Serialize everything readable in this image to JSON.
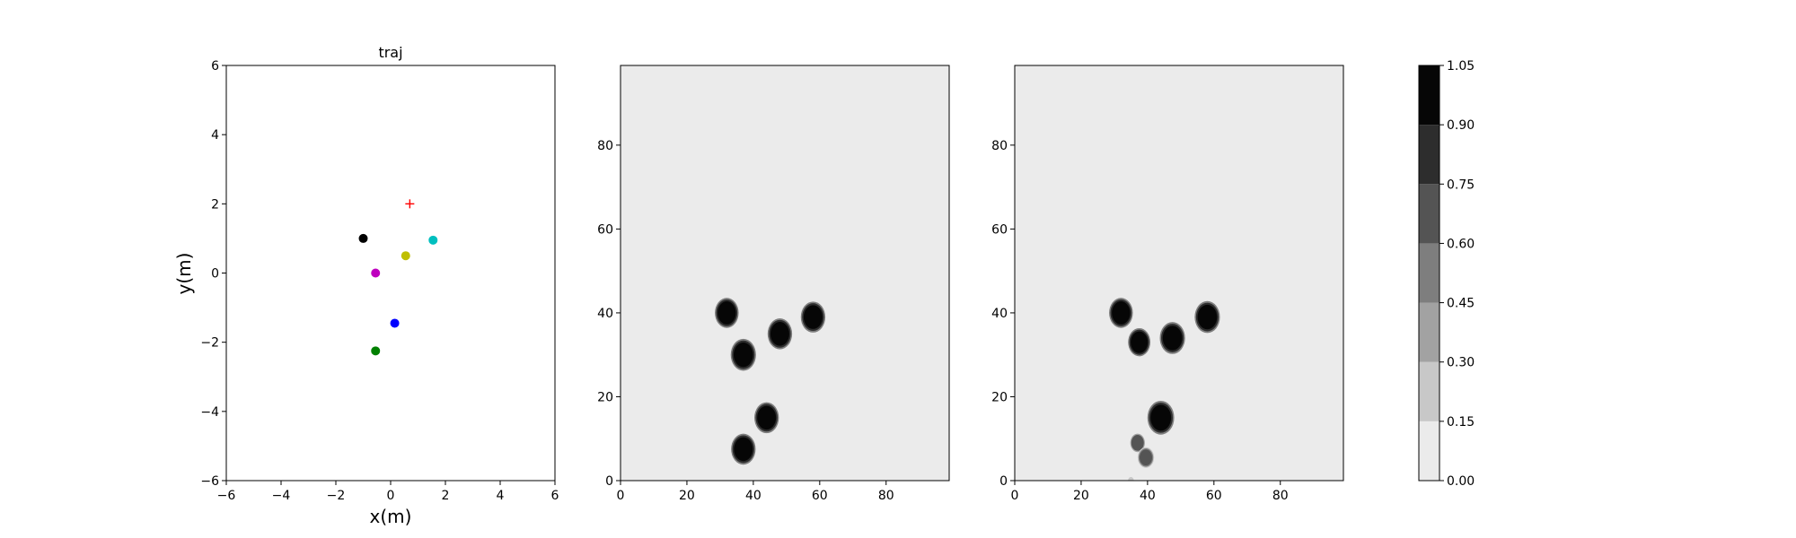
{
  "chart_data": [
    {
      "type": "scatter",
      "title": "traj",
      "xlabel": "x(m)",
      "ylabel": "y(m)",
      "xlim": [
        -6,
        6
      ],
      "ylim": [
        -6,
        6
      ],
      "xticks": [
        -6,
        -4,
        -2,
        0,
        2,
        4,
        6
      ],
      "yticks": [
        -6,
        -4,
        -2,
        0,
        2,
        4,
        6
      ],
      "grid": false,
      "points": [
        {
          "x": -1.0,
          "y": 1.0,
          "color": "#000000",
          "marker": "circle"
        },
        {
          "x": -0.55,
          "y": 0.0,
          "color": "#bf00bf",
          "marker": "circle"
        },
        {
          "x": 0.55,
          "y": 0.5,
          "color": "#bfbf00",
          "marker": "circle"
        },
        {
          "x": 1.55,
          "y": 0.95,
          "color": "#00bfbf",
          "marker": "circle"
        },
        {
          "x": 0.15,
          "y": -1.45,
          "color": "#0000ff",
          "marker": "circle"
        },
        {
          "x": -0.55,
          "y": -2.25,
          "color": "#008000",
          "marker": "circle"
        }
      ],
      "goal": {
        "x": 0.7,
        "y": 2.0,
        "color": "#ff0000",
        "marker": "plus"
      }
    },
    {
      "type": "heatmap",
      "xlim": [
        0,
        99
      ],
      "ylim": [
        0,
        99
      ],
      "xticks": [
        0,
        20,
        40,
        60,
        80
      ],
      "yticks": [
        0,
        20,
        40,
        60,
        80
      ],
      "background_value": 0.05,
      "blobs": [
        {
          "x": 32,
          "y": 40,
          "r": 3.2,
          "value": 1.0
        },
        {
          "x": 37,
          "y": 30,
          "r": 3.4,
          "value": 1.0
        },
        {
          "x": 48,
          "y": 35,
          "r": 3.3,
          "value": 1.0
        },
        {
          "x": 58,
          "y": 39,
          "r": 3.3,
          "value": 1.0
        },
        {
          "x": 44,
          "y": 15,
          "r": 3.3,
          "value": 1.0
        },
        {
          "x": 37,
          "y": 7.5,
          "r": 3.3,
          "value": 1.0
        }
      ]
    },
    {
      "type": "heatmap",
      "xlim": [
        0,
        99
      ],
      "ylim": [
        0,
        99
      ],
      "xticks": [
        0,
        20,
        40,
        60,
        80
      ],
      "yticks": [
        0,
        20,
        40,
        60,
        80
      ],
      "background_value": 0.05,
      "blobs": [
        {
          "x": 32,
          "y": 40,
          "r": 3.2,
          "value": 1.0
        },
        {
          "x": 37.5,
          "y": 33,
          "r": 3.0,
          "value": 1.0
        },
        {
          "x": 47.5,
          "y": 34,
          "r": 3.4,
          "value": 1.0
        },
        {
          "x": 58,
          "y": 39,
          "r": 3.4,
          "value": 1.0
        },
        {
          "x": 44,
          "y": 15,
          "r": 3.6,
          "value": 1.0
        },
        {
          "x": 37,
          "y": 9,
          "r": 2.2,
          "value": 0.6
        },
        {
          "x": 39.5,
          "y": 5.5,
          "r": 2.2,
          "value": 0.65
        },
        {
          "x": 35,
          "y": 0,
          "r": 1.0,
          "value": 0.2
        }
      ]
    }
  ],
  "colorbar": {
    "ticks": [
      "0.00",
      "0.15",
      "0.30",
      "0.45",
      "0.60",
      "0.75",
      "0.90",
      "1.05"
    ],
    "levels": [
      {
        "from": 0.0,
        "to": 0.15,
        "color": "#ebebeb"
      },
      {
        "from": 0.15,
        "to": 0.3,
        "color": "#c8c8c8"
      },
      {
        "from": 0.3,
        "to": 0.45,
        "color": "#a2a2a2"
      },
      {
        "from": 0.45,
        "to": 0.6,
        "color": "#7e7e7e"
      },
      {
        "from": 0.6,
        "to": 0.75,
        "color": "#545454"
      },
      {
        "from": 0.75,
        "to": 0.9,
        "color": "#2d2d2d"
      },
      {
        "from": 0.9,
        "to": 1.05,
        "color": "#060606"
      }
    ]
  }
}
